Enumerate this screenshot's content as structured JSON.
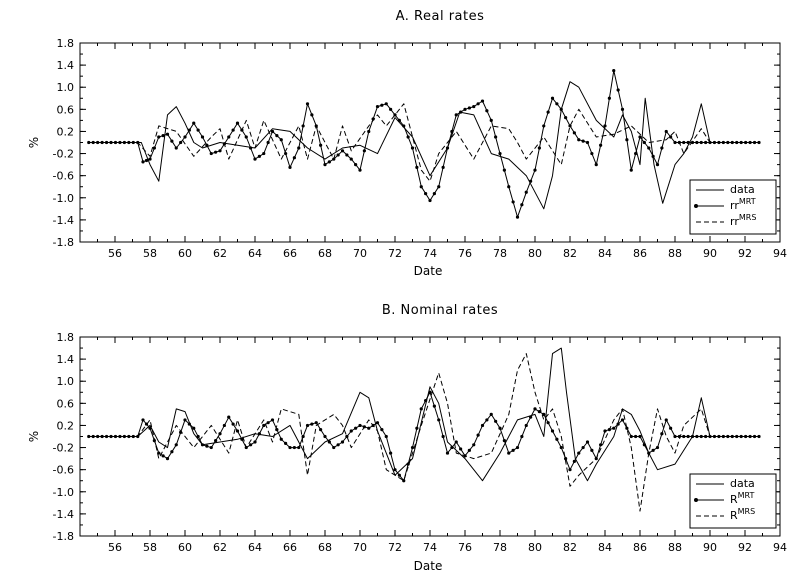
{
  "chart_data": [
    {
      "type": "line",
      "title": "A. Real rates",
      "xlabel": "Date",
      "ylabel": "%",
      "xlim": [
        54,
        94
      ],
      "ylim": [
        -1.8,
        1.8
      ],
      "xticks": [
        56,
        58,
        60,
        62,
        64,
        66,
        68,
        70,
        72,
        74,
        76,
        78,
        80,
        82,
        84,
        86,
        88,
        90,
        92,
        94
      ],
      "yticks": [
        1.8,
        1.4,
        1.0,
        0.6,
        0.2,
        -0.2,
        -0.6,
        -1.0,
        -1.4,
        -1.8
      ],
      "legend_position": "bottom-right",
      "series": [
        {
          "name": "data",
          "sup": "",
          "style": "solid",
          "markers": false,
          "x": [
            54.5,
            57.5,
            58.0,
            58.5,
            59.0,
            59.5,
            60.0,
            60.5,
            61.0,
            62.0,
            63.0,
            64.0,
            65.0,
            66.0,
            67.0,
            68.0,
            69.0,
            70.0,
            71.0,
            72.0,
            73.0,
            74.0,
            75.0,
            75.7,
            76.5,
            77.5,
            78.5,
            79.5,
            80.5,
            81.0,
            81.5,
            82.0,
            82.5,
            83.5,
            84.5,
            85.0,
            85.5,
            86.0,
            86.3,
            86.8,
            87.3,
            88.0,
            88.5,
            89.0,
            89.5,
            90.0,
            92.8
          ],
          "y": [
            0.0,
            0.0,
            -0.4,
            -0.7,
            0.5,
            0.65,
            0.35,
            0.0,
            -0.1,
            0.0,
            -0.05,
            -0.1,
            0.25,
            0.2,
            -0.1,
            -0.3,
            -0.1,
            -0.05,
            -0.2,
            0.45,
            0.1,
            -0.6,
            -0.1,
            0.55,
            0.5,
            -0.2,
            -0.3,
            -0.6,
            -1.2,
            -0.6,
            0.6,
            1.1,
            1.0,
            0.4,
            0.1,
            0.5,
            0.2,
            -0.4,
            0.8,
            -0.4,
            -1.1,
            -0.4,
            -0.2,
            0.1,
            0.7,
            0.0,
            0.0
          ]
        },
        {
          "name": "rr",
          "sup": "MRT",
          "style": "solid",
          "markers": true,
          "x": [
            54.5,
            57.3,
            57.6,
            58.0,
            58.5,
            59.0,
            59.5,
            60.0,
            60.5,
            61.0,
            61.5,
            62.0,
            62.5,
            63.0,
            63.5,
            64.0,
            64.5,
            65.0,
            65.5,
            66.0,
            66.5,
            67.0,
            67.5,
            68.0,
            68.5,
            69.0,
            69.5,
            70.0,
            70.5,
            71.0,
            71.5,
            72.0,
            72.5,
            73.0,
            73.5,
            74.0,
            74.5,
            75.0,
            75.5,
            76.0,
            76.5,
            77.0,
            77.5,
            78.0,
            78.5,
            79.0,
            79.5,
            80.0,
            80.5,
            81.0,
            81.5,
            82.0,
            82.5,
            83.0,
            83.5,
            84.0,
            84.5,
            85.0,
            85.5,
            86.0,
            86.5,
            87.0,
            87.5,
            88.0,
            88.5,
            89.0,
            89.5,
            90.0,
            92.8
          ],
          "y": [
            0.0,
            0.0,
            -0.35,
            -0.3,
            0.1,
            0.15,
            -0.1,
            0.1,
            0.35,
            0.1,
            -0.2,
            -0.15,
            0.1,
            0.35,
            0.1,
            -0.3,
            -0.2,
            0.2,
            0.05,
            -0.45,
            -0.1,
            0.7,
            0.3,
            -0.4,
            -0.3,
            -0.15,
            -0.3,
            -0.5,
            0.2,
            0.65,
            0.7,
            0.5,
            0.3,
            -0.1,
            -0.8,
            -1.05,
            -0.8,
            -0.1,
            0.5,
            0.6,
            0.65,
            0.75,
            0.4,
            -0.2,
            -0.8,
            -1.35,
            -0.9,
            -0.5,
            0.3,
            0.8,
            0.6,
            0.3,
            0.05,
            0.0,
            -0.4,
            0.3,
            1.3,
            0.6,
            -0.5,
            0.1,
            -0.1,
            -0.4,
            0.2,
            0.0,
            0.0,
            0.0,
            0.0,
            0.0,
            0.0
          ]
        },
        {
          "name": "rr",
          "sup": "MRS",
          "style": "dashed",
          "markers": false,
          "x": [
            54.5,
            57.3,
            58.0,
            58.5,
            59.5,
            60.5,
            61.5,
            62.0,
            62.5,
            63.5,
            64.0,
            64.5,
            65.5,
            66.5,
            67.0,
            67.5,
            68.5,
            69.0,
            69.5,
            70.5,
            71.0,
            71.5,
            72.5,
            73.5,
            74.0,
            74.5,
            75.5,
            76.5,
            77.5,
            78.5,
            79.0,
            79.5,
            80.5,
            81.5,
            82.0,
            82.5,
            83.5,
            84.5,
            85.5,
            86.5,
            87.5,
            88.0,
            88.5,
            89.5,
            90.0,
            92.8
          ],
          "y": [
            0.0,
            0.0,
            -0.25,
            0.3,
            0.2,
            -0.25,
            0.1,
            0.25,
            -0.3,
            0.4,
            -0.1,
            0.4,
            -0.3,
            0.3,
            -0.3,
            0.3,
            -0.3,
            0.3,
            -0.15,
            0.3,
            0.5,
            0.3,
            0.7,
            -0.5,
            -0.7,
            -0.2,
            0.2,
            -0.3,
            0.3,
            0.25,
            0.0,
            -0.3,
            0.1,
            -0.4,
            0.3,
            0.6,
            0.1,
            0.15,
            0.3,
            0.0,
            0.05,
            0.2,
            -0.2,
            0.25,
            0.0,
            0.0
          ]
        }
      ]
    },
    {
      "type": "line",
      "title": "B. Nominal rates",
      "xlabel": "Date",
      "ylabel": "%",
      "xlim": [
        54,
        94
      ],
      "ylim": [
        -1.8,
        1.8
      ],
      "xticks": [
        56,
        58,
        60,
        62,
        64,
        66,
        68,
        70,
        72,
        74,
        76,
        78,
        80,
        82,
        84,
        86,
        88,
        90,
        92,
        94
      ],
      "yticks": [
        1.8,
        1.4,
        1.0,
        0.6,
        0.2,
        -0.2,
        -0.6,
        -1.0,
        -1.4,
        -1.8
      ],
      "legend_position": "bottom-right",
      "series": [
        {
          "name": "data",
          "sup": "",
          "style": "solid",
          "markers": false,
          "x": [
            54.5,
            57.3,
            58.0,
            58.5,
            59.0,
            59.5,
            60.0,
            60.5,
            61.0,
            62.0,
            63.0,
            64.0,
            65.0,
            66.0,
            67.0,
            68.0,
            69.0,
            70.0,
            70.5,
            71.0,
            72.0,
            73.0,
            74.0,
            74.5,
            75.0,
            76.0,
            77.0,
            78.0,
            79.0,
            80.0,
            80.5,
            81.0,
            81.5,
            81.8,
            82.3,
            83.0,
            83.5,
            84.5,
            85.0,
            85.5,
            86.0,
            86.5,
            87.0,
            88.0,
            89.0,
            89.5,
            90.0,
            92.8
          ],
          "y": [
            0.0,
            0.0,
            0.2,
            -0.1,
            -0.2,
            0.5,
            0.45,
            0.05,
            -0.15,
            -0.1,
            -0.05,
            0.05,
            0.0,
            0.2,
            -0.4,
            -0.1,
            0.05,
            0.8,
            0.7,
            0.1,
            -0.7,
            -0.4,
            0.9,
            0.6,
            -0.1,
            -0.4,
            -0.8,
            -0.3,
            0.3,
            0.4,
            0.0,
            1.5,
            1.6,
            0.8,
            -0.4,
            -0.8,
            -0.5,
            0.0,
            0.5,
            0.4,
            0.1,
            -0.3,
            -0.6,
            -0.5,
            0.0,
            0.7,
            0.0,
            0.0
          ]
        },
        {
          "name": "R",
          "sup": "MRT",
          "style": "solid",
          "markers": true,
          "x": [
            54.5,
            57.3,
            57.6,
            58.0,
            58.5,
            59.0,
            59.5,
            60.0,
            60.5,
            61.0,
            61.5,
            62.0,
            62.5,
            63.0,
            63.5,
            64.0,
            64.5,
            65.0,
            65.5,
            66.0,
            66.5,
            67.0,
            67.5,
            68.0,
            68.5,
            69.0,
            69.5,
            70.0,
            70.5,
            71.0,
            71.5,
            72.0,
            72.5,
            73.0,
            73.5,
            74.0,
            74.5,
            75.0,
            75.5,
            76.0,
            76.5,
            77.0,
            77.5,
            78.0,
            78.5,
            79.0,
            79.5,
            80.0,
            80.5,
            81.0,
            81.5,
            82.0,
            82.5,
            83.0,
            83.5,
            84.0,
            84.5,
            85.0,
            85.5,
            86.0,
            86.5,
            87.0,
            87.5,
            88.0,
            88.5,
            89.0,
            89.5,
            90.0,
            92.8
          ],
          "y": [
            0.0,
            0.0,
            0.3,
            0.15,
            -0.3,
            -0.4,
            -0.15,
            0.3,
            0.15,
            -0.15,
            -0.2,
            0.05,
            0.35,
            0.1,
            -0.2,
            -0.1,
            0.2,
            0.3,
            -0.05,
            -0.2,
            -0.2,
            0.2,
            0.25,
            0.0,
            -0.2,
            -0.1,
            0.1,
            0.2,
            0.15,
            0.25,
            0.0,
            -0.6,
            -0.8,
            -0.2,
            0.5,
            0.8,
            0.3,
            -0.3,
            -0.1,
            -0.35,
            -0.15,
            0.2,
            0.4,
            0.15,
            -0.3,
            -0.2,
            0.2,
            0.5,
            0.4,
            0.1,
            -0.2,
            -0.6,
            -0.3,
            -0.1,
            -0.4,
            0.1,
            0.15,
            0.3,
            0.0,
            0.0,
            -0.3,
            -0.2,
            0.3,
            0.0,
            0.0,
            0.0,
            0.0,
            0.0,
            0.0
          ]
        },
        {
          "name": "R",
          "sup": "MRS",
          "style": "dashed",
          "markers": false,
          "x": [
            54.5,
            57.3,
            58.0,
            58.5,
            59.5,
            60.5,
            61.5,
            62.5,
            63.0,
            63.5,
            64.5,
            65.0,
            65.5,
            66.5,
            67.0,
            67.5,
            68.5,
            69.0,
            69.5,
            70.5,
            71.0,
            71.5,
            72.5,
            73.5,
            74.5,
            75.0,
            75.5,
            76.5,
            77.5,
            78.5,
            79.0,
            79.5,
            80.0,
            80.5,
            81.0,
            81.5,
            82.0,
            82.5,
            83.5,
            84.5,
            85.0,
            85.5,
            86.0,
            86.5,
            87.0,
            87.5,
            88.0,
            88.5,
            89.5,
            90.0,
            92.8
          ],
          "y": [
            0.0,
            0.0,
            0.3,
            -0.4,
            0.2,
            -0.2,
            0.2,
            -0.3,
            0.3,
            -0.2,
            0.3,
            -0.1,
            0.5,
            0.4,
            -0.7,
            0.2,
            0.4,
            0.2,
            -0.2,
            0.3,
            0.1,
            -0.6,
            -0.8,
            0.2,
            1.15,
            0.6,
            -0.3,
            -0.4,
            -0.3,
            0.4,
            1.2,
            1.5,
            0.8,
            0.3,
            0.5,
            0.0,
            -0.9,
            -0.7,
            -0.4,
            0.3,
            0.5,
            -0.2,
            -1.35,
            -0.3,
            0.5,
            0.0,
            -0.3,
            0.2,
            0.5,
            0.0,
            0.0
          ]
        }
      ]
    }
  ]
}
